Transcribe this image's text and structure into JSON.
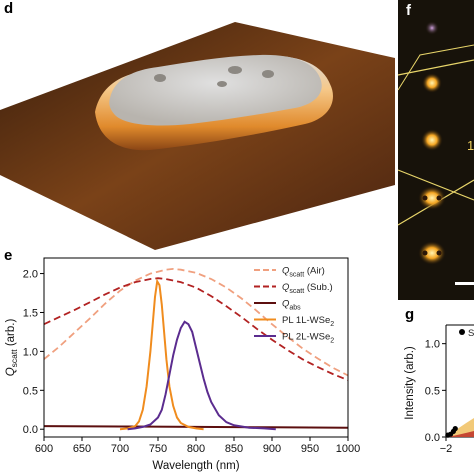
{
  "panels": {
    "d": "d",
    "e": "e",
    "f": "f",
    "g": "g"
  },
  "micrograph": {
    "partial_label": "1"
  },
  "chart_data": [
    {
      "panel": "e",
      "type": "line",
      "xlabel": "Wavelength (nm)",
      "ylabel": "Q_scatt (arb.)",
      "xlim": [
        600,
        1000
      ],
      "ylim": [
        -0.1,
        2.2
      ],
      "xticks": [
        600,
        650,
        700,
        750,
        800,
        850,
        900,
        950,
        1000
      ],
      "yticks": [
        0.0,
        0.5,
        1.0,
        1.5,
        2.0
      ],
      "grid": false,
      "legend_position": "top-right",
      "legend": [
        {
          "main": "Q",
          "sub": "scatt",
          "suffix": " (Air)"
        },
        {
          "main": "Q",
          "sub": "scatt",
          "suffix": " (Sub.)"
        },
        {
          "main": "Q",
          "sub": "abs",
          "suffix": ""
        },
        {
          "main": "PL 1L-WSe",
          "sub": "2",
          "suffix": ""
        },
        {
          "main": "PL 2L-WSe",
          "sub": "2",
          "suffix": ""
        }
      ],
      "series": [
        {
          "color": "#f0a07f",
          "style": "dashed",
          "x": [
            600,
            620,
            640,
            660,
            680,
            700,
            720,
            740,
            760,
            770,
            780,
            800,
            820,
            840,
            860,
            880,
            900,
            920,
            940,
            960,
            980,
            1000
          ],
          "y": [
            0.9,
            1.06,
            1.24,
            1.42,
            1.61,
            1.78,
            1.91,
            2.0,
            2.05,
            2.06,
            2.05,
            2.01,
            1.93,
            1.82,
            1.68,
            1.52,
            1.35,
            1.19,
            1.04,
            0.91,
            0.79,
            0.69
          ]
        },
        {
          "color": "#b22222",
          "style": "dashed",
          "x": [
            600,
            620,
            640,
            660,
            680,
            700,
            720,
            740,
            750,
            760,
            780,
            800,
            820,
            840,
            860,
            880,
            900,
            920,
            940,
            960,
            980,
            1000
          ],
          "y": [
            1.35,
            1.44,
            1.53,
            1.63,
            1.73,
            1.82,
            1.89,
            1.93,
            1.94,
            1.93,
            1.89,
            1.82,
            1.71,
            1.58,
            1.44,
            1.29,
            1.15,
            1.02,
            0.9,
            0.8,
            0.71,
            0.63
          ]
        },
        {
          "color": "#5c0f0f",
          "style": "solid",
          "x": [
            600,
            700,
            800,
            900,
            1000
          ],
          "y": [
            0.04,
            0.035,
            0.03,
            0.025,
            0.02
          ]
        },
        {
          "color": "#f08c1e",
          "style": "solid",
          "x": [
            700,
            710,
            720,
            725,
            730,
            735,
            740,
            743,
            746,
            749,
            752,
            755,
            758,
            761,
            765,
            770,
            775,
            780,
            790,
            800,
            810
          ],
          "y": [
            0.0,
            0.01,
            0.04,
            0.1,
            0.25,
            0.55,
            1.0,
            1.35,
            1.7,
            1.9,
            1.85,
            1.6,
            1.25,
            0.9,
            0.55,
            0.3,
            0.15,
            0.08,
            0.03,
            0.01,
            0.0
          ]
        },
        {
          "color": "#5b2c8f",
          "style": "solid",
          "x": [
            710,
            720,
            730,
            740,
            750,
            755,
            760,
            765,
            770,
            775,
            780,
            785,
            790,
            795,
            800,
            805,
            810,
            815,
            820,
            830,
            840,
            850,
            870,
            890,
            905
          ],
          "y": [
            0.0,
            0.01,
            0.03,
            0.06,
            0.15,
            0.25,
            0.45,
            0.7,
            0.95,
            1.15,
            1.3,
            1.38,
            1.35,
            1.25,
            1.05,
            0.85,
            0.65,
            0.48,
            0.35,
            0.18,
            0.09,
            0.05,
            0.02,
            0.01,
            0.0
          ]
        }
      ]
    },
    {
      "panel": "g",
      "type": "scatter",
      "xlabel": "",
      "ylabel": "Intensity (arb.)",
      "xlim": [
        -2,
        2
      ],
      "ylim": [
        0.0,
        1.2
      ],
      "xticks": [
        -2
      ],
      "yticks": [
        0.0,
        0.5,
        1.0
      ],
      "legend_partial": "S",
      "series": [
        {
          "color": "#000000",
          "x": [
            -1.9,
            -1.75,
            -1.6,
            -1.5
          ],
          "y": [
            0.02,
            0.03,
            0.06,
            0.09
          ]
        }
      ]
    }
  ]
}
